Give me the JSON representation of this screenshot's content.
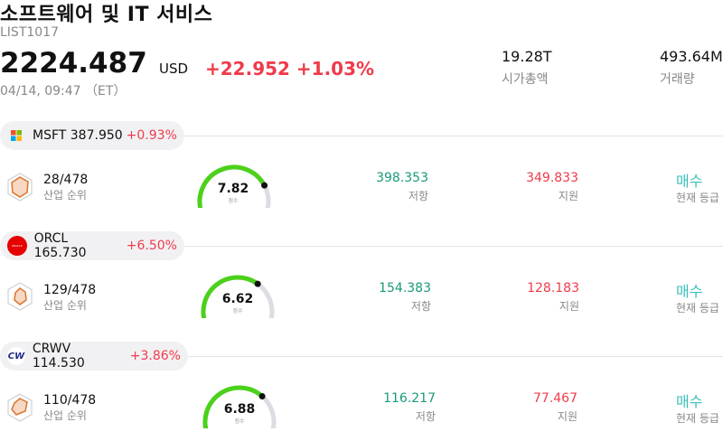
{
  "header": {
    "title": "소프트웨어 및 IT 서비스",
    "code": "LIST1017",
    "price": "2224.487",
    "currency": "USD",
    "change": "+22.952 +1.03%",
    "time": "04/14, 09:47 （ET）",
    "market_cap_value": "19.28T",
    "market_cap_label": "시가총액",
    "volume_value": "493.64M",
    "volume_label": "거래량"
  },
  "stocks": [
    {
      "head": "MSFT 387.950",
      "change": "+0.93%",
      "logo_icon": "microsoft-logo-icon",
      "rank": "28/478",
      "rank_label": "산업 순위",
      "score": "7.82",
      "score_label": "점수",
      "score_value": 0.782,
      "resistance": "398.353",
      "resistance_label": "저항",
      "support": "349.833",
      "support_label": "지원",
      "grade": "매수",
      "grade_label": "현재 등급"
    },
    {
      "head": "ORCL 165.730",
      "change": "+6.50%",
      "logo_icon": "oracle-logo-icon",
      "logo_text": "ORACLE",
      "rank": "129/478",
      "rank_label": "산업 순위",
      "score": "6.62",
      "score_label": "점수",
      "score_value": 0.662,
      "resistance": "154.383",
      "resistance_label": "저항",
      "support": "128.183",
      "support_label": "지원",
      "grade": "매수",
      "grade_label": "현재 등급"
    },
    {
      "head": "CRWV 114.530",
      "change": "+3.86%",
      "logo_icon": "coreweave-logo-icon",
      "logo_text": "CW",
      "rank": "110/478",
      "rank_label": "산업 순위",
      "score": "6.88",
      "score_label": "점수",
      "score_value": 0.688,
      "resistance": "116.217",
      "resistance_label": "저항",
      "support": "77.467",
      "support_label": "지원",
      "grade": "매수",
      "grade_label": "현재 등급"
    }
  ],
  "colors": {
    "up": "#ef3b4b",
    "resistance": "#1a9a7a",
    "grade": "#3bbfb8",
    "gauge_fill": "#4cd11a",
    "gauge_track": "#dcdce3"
  }
}
